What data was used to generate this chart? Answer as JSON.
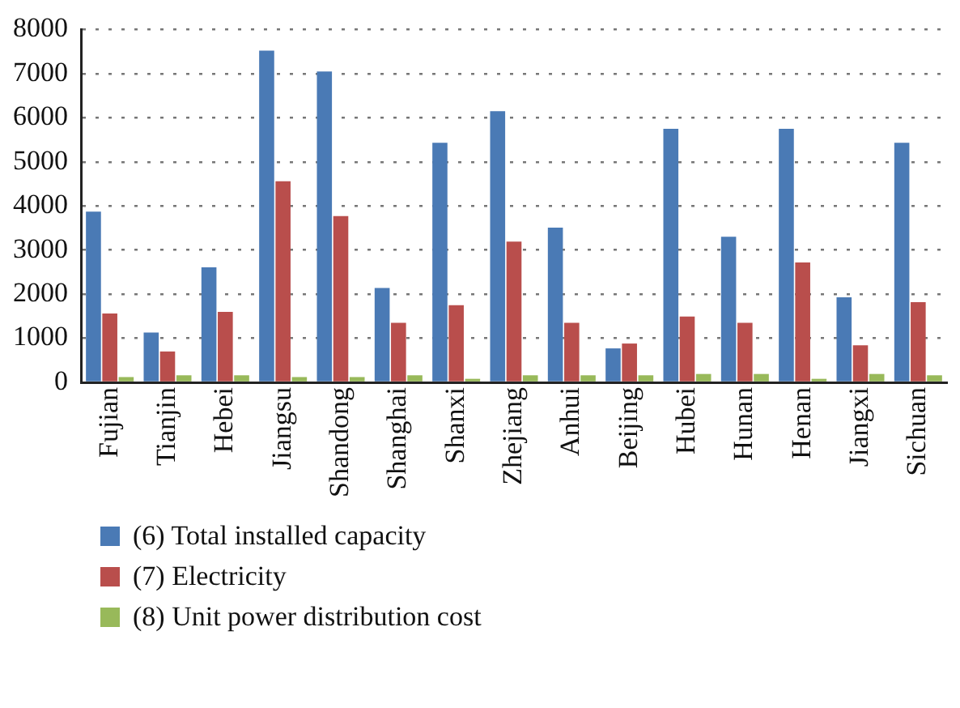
{
  "chart_data": {
    "type": "bar",
    "categories": [
      "Fujian",
      "Tianjin",
      "Hebei",
      "Jiangsu",
      "Shandong",
      "Shanghai",
      "Shanxi",
      "Zhejiang",
      "Anhui",
      "Beijing",
      "Hubei",
      "Hunan",
      "Henan",
      "Jiangxi",
      "Sichuan"
    ],
    "series": [
      {
        "name": "(6) Total installed capacity",
        "color": "#4a7ab5",
        "values": [
          3870,
          1130,
          2610,
          7520,
          7050,
          2140,
          5430,
          6150,
          3510,
          770,
          5750,
          3300,
          5750,
          1930,
          5430
        ]
      },
      {
        "name": "(7) Electricity",
        "color": "#b94e4c",
        "values": [
          1560,
          700,
          1600,
          4560,
          3770,
          1350,
          1750,
          3190,
          1350,
          880,
          1490,
          1350,
          2720,
          840,
          1820
        ]
      },
      {
        "name": "(8) Unit power distribution cost",
        "color": "#98b95a",
        "values": [
          120,
          160,
          160,
          120,
          120,
          160,
          80,
          160,
          160,
          160,
          190,
          190,
          80,
          190,
          160
        ]
      }
    ],
    "ylim": [
      0,
      8000
    ],
    "yticks": [
      0,
      1000,
      2000,
      3000,
      4000,
      5000,
      6000,
      7000,
      8000
    ],
    "grid": "y",
    "legend": "bottom"
  }
}
